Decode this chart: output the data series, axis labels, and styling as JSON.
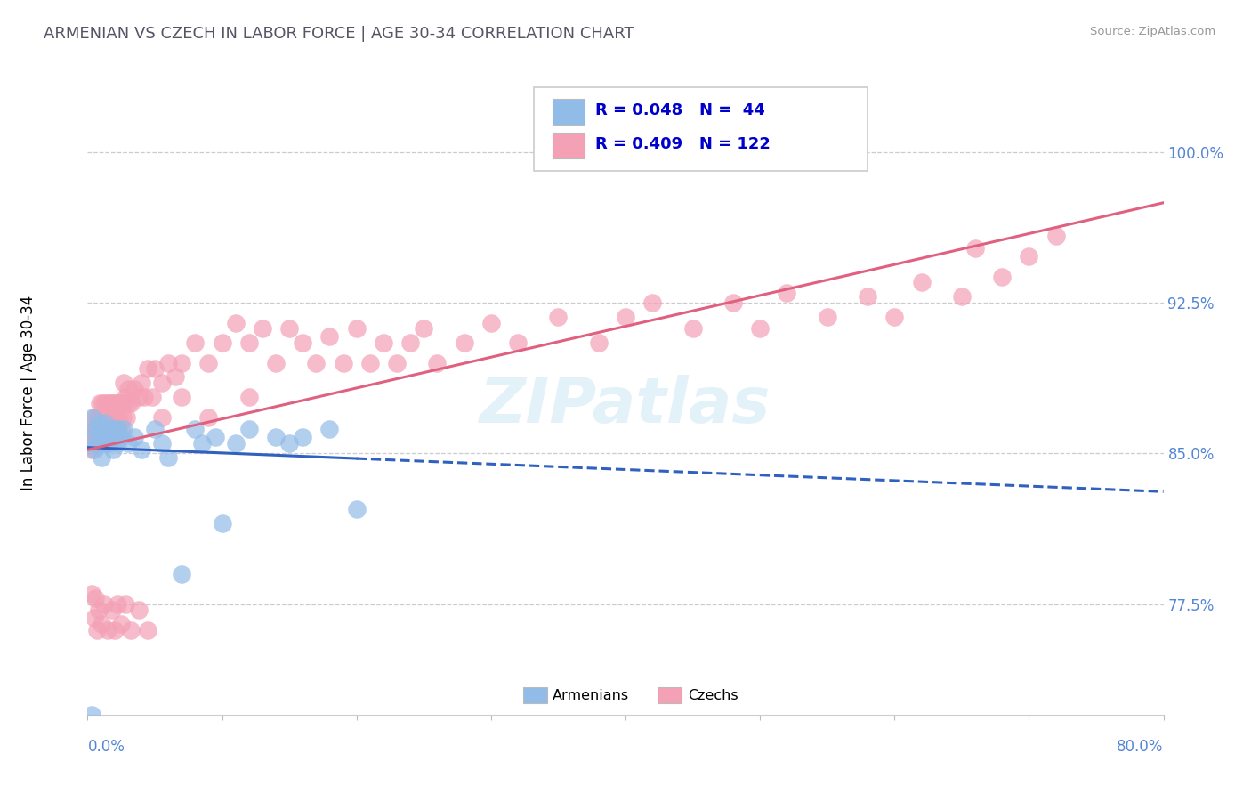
{
  "title": "ARMENIAN VS CZECH IN LABOR FORCE | AGE 30-34 CORRELATION CHART",
  "source": "Source: ZipAtlas.com",
  "ylabel": "In Labor Force | Age 30-34",
  "ytick_labels": [
    "77.5%",
    "85.0%",
    "92.5%",
    "100.0%"
  ],
  "ytick_values": [
    0.775,
    0.85,
    0.925,
    1.0
  ],
  "xmin": 0.0,
  "xmax": 0.8,
  "ymin": 0.72,
  "ymax": 1.04,
  "armenian_color": "#92bce8",
  "czech_color": "#f4a0b5",
  "armenian_line_color": "#3060c0",
  "czech_line_color": "#e06080",
  "armenian_R": 0.048,
  "armenian_N": 44,
  "czech_R": 0.409,
  "czech_N": 122,
  "tick_color": "#5585d5",
  "watermark": "ZIPatlas",
  "armenian_points": [
    [
      0.003,
      0.858
    ],
    [
      0.004,
      0.868
    ],
    [
      0.005,
      0.852
    ],
    [
      0.006,
      0.862
    ],
    [
      0.007,
      0.855
    ],
    [
      0.008,
      0.865
    ],
    [
      0.009,
      0.858
    ],
    [
      0.01,
      0.862
    ],
    [
      0.01,
      0.848
    ],
    [
      0.011,
      0.855
    ],
    [
      0.012,
      0.862
    ],
    [
      0.013,
      0.858
    ],
    [
      0.013,
      0.865
    ],
    [
      0.014,
      0.855
    ],
    [
      0.015,
      0.862
    ],
    [
      0.016,
      0.855
    ],
    [
      0.017,
      0.862
    ],
    [
      0.018,
      0.858
    ],
    [
      0.019,
      0.852
    ],
    [
      0.02,
      0.858
    ],
    [
      0.021,
      0.862
    ],
    [
      0.022,
      0.855
    ],
    [
      0.023,
      0.862
    ],
    [
      0.025,
      0.858
    ],
    [
      0.027,
      0.862
    ],
    [
      0.03,
      0.855
    ],
    [
      0.035,
      0.858
    ],
    [
      0.04,
      0.852
    ],
    [
      0.05,
      0.862
    ],
    [
      0.055,
      0.855
    ],
    [
      0.06,
      0.848
    ],
    [
      0.08,
      0.862
    ],
    [
      0.085,
      0.855
    ],
    [
      0.095,
      0.858
    ],
    [
      0.11,
      0.855
    ],
    [
      0.12,
      0.862
    ],
    [
      0.14,
      0.858
    ],
    [
      0.15,
      0.855
    ],
    [
      0.16,
      0.858
    ],
    [
      0.18,
      0.862
    ],
    [
      0.003,
      0.72
    ],
    [
      0.07,
      0.79
    ],
    [
      0.1,
      0.815
    ],
    [
      0.2,
      0.822
    ]
  ],
  "czech_points": [
    [
      0.003,
      0.858
    ],
    [
      0.003,
      0.852
    ],
    [
      0.004,
      0.862
    ],
    [
      0.004,
      0.855
    ],
    [
      0.005,
      0.868
    ],
    [
      0.005,
      0.858
    ],
    [
      0.006,
      0.862
    ],
    [
      0.006,
      0.855
    ],
    [
      0.007,
      0.868
    ],
    [
      0.007,
      0.862
    ],
    [
      0.008,
      0.855
    ],
    [
      0.008,
      0.868
    ],
    [
      0.009,
      0.862
    ],
    [
      0.009,
      0.875
    ],
    [
      0.01,
      0.858
    ],
    [
      0.01,
      0.868
    ],
    [
      0.011,
      0.875
    ],
    [
      0.011,
      0.862
    ],
    [
      0.012,
      0.858
    ],
    [
      0.012,
      0.868
    ],
    [
      0.013,
      0.875
    ],
    [
      0.013,
      0.862
    ],
    [
      0.014,
      0.868
    ],
    [
      0.014,
      0.855
    ],
    [
      0.015,
      0.875
    ],
    [
      0.015,
      0.862
    ],
    [
      0.016,
      0.868
    ],
    [
      0.016,
      0.875
    ],
    [
      0.017,
      0.862
    ],
    [
      0.017,
      0.868
    ],
    [
      0.018,
      0.875
    ],
    [
      0.018,
      0.858
    ],
    [
      0.019,
      0.862
    ],
    [
      0.019,
      0.875
    ],
    [
      0.02,
      0.868
    ],
    [
      0.02,
      0.858
    ],
    [
      0.021,
      0.875
    ],
    [
      0.022,
      0.862
    ],
    [
      0.022,
      0.875
    ],
    [
      0.023,
      0.868
    ],
    [
      0.024,
      0.875
    ],
    [
      0.025,
      0.862
    ],
    [
      0.025,
      0.875
    ],
    [
      0.026,
      0.868
    ],
    [
      0.027,
      0.875
    ],
    [
      0.027,
      0.885
    ],
    [
      0.028,
      0.878
    ],
    [
      0.029,
      0.868
    ],
    [
      0.03,
      0.882
    ],
    [
      0.032,
      0.875
    ],
    [
      0.035,
      0.882
    ],
    [
      0.038,
      0.878
    ],
    [
      0.04,
      0.885
    ],
    [
      0.042,
      0.878
    ],
    [
      0.045,
      0.892
    ],
    [
      0.048,
      0.878
    ],
    [
      0.05,
      0.892
    ],
    [
      0.055,
      0.885
    ],
    [
      0.06,
      0.895
    ],
    [
      0.065,
      0.888
    ],
    [
      0.07,
      0.895
    ],
    [
      0.08,
      0.905
    ],
    [
      0.09,
      0.895
    ],
    [
      0.1,
      0.905
    ],
    [
      0.11,
      0.915
    ],
    [
      0.12,
      0.905
    ],
    [
      0.13,
      0.912
    ],
    [
      0.14,
      0.895
    ],
    [
      0.15,
      0.912
    ],
    [
      0.16,
      0.905
    ],
    [
      0.17,
      0.895
    ],
    [
      0.18,
      0.908
    ],
    [
      0.19,
      0.895
    ],
    [
      0.2,
      0.912
    ],
    [
      0.21,
      0.895
    ],
    [
      0.22,
      0.905
    ],
    [
      0.23,
      0.895
    ],
    [
      0.24,
      0.905
    ],
    [
      0.25,
      0.912
    ],
    [
      0.26,
      0.895
    ],
    [
      0.28,
      0.905
    ],
    [
      0.3,
      0.915
    ],
    [
      0.32,
      0.905
    ],
    [
      0.35,
      0.918
    ],
    [
      0.38,
      0.905
    ],
    [
      0.4,
      0.918
    ],
    [
      0.42,
      0.925
    ],
    [
      0.45,
      0.912
    ],
    [
      0.48,
      0.925
    ],
    [
      0.5,
      0.912
    ],
    [
      0.52,
      0.93
    ],
    [
      0.55,
      0.918
    ],
    [
      0.58,
      0.928
    ],
    [
      0.6,
      0.918
    ],
    [
      0.62,
      0.935
    ],
    [
      0.65,
      0.928
    ],
    [
      0.66,
      0.952
    ],
    [
      0.68,
      0.938
    ],
    [
      0.7,
      0.948
    ],
    [
      0.72,
      0.958
    ],
    [
      0.003,
      0.78
    ],
    [
      0.005,
      0.768
    ],
    [
      0.006,
      0.778
    ],
    [
      0.007,
      0.762
    ],
    [
      0.008,
      0.772
    ],
    [
      0.01,
      0.765
    ],
    [
      0.012,
      0.775
    ],
    [
      0.015,
      0.762
    ],
    [
      0.018,
      0.772
    ],
    [
      0.02,
      0.762
    ],
    [
      0.022,
      0.775
    ],
    [
      0.025,
      0.765
    ],
    [
      0.028,
      0.775
    ],
    [
      0.032,
      0.762
    ],
    [
      0.038,
      0.772
    ],
    [
      0.045,
      0.762
    ],
    [
      0.008,
      0.858
    ],
    [
      0.03,
      0.875
    ],
    [
      0.055,
      0.868
    ],
    [
      0.07,
      0.878
    ],
    [
      0.09,
      0.868
    ],
    [
      0.12,
      0.878
    ]
  ]
}
